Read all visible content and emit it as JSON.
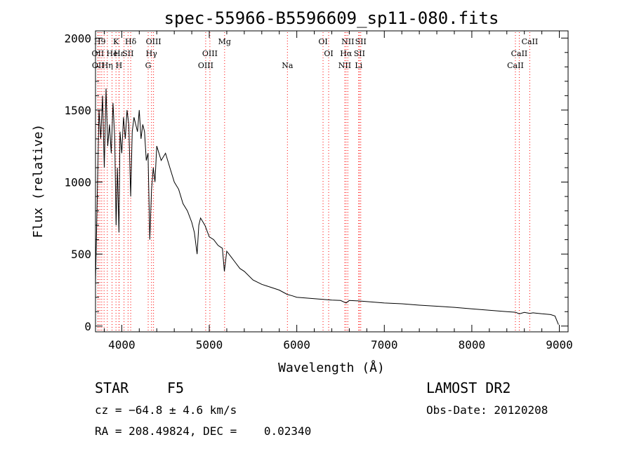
{
  "chart_data": {
    "type": "line",
    "title": "spec-55966-B5596609_sp11-080.fits",
    "xlabel": "Wavelength (Å)",
    "ylabel": "Flux (relative)",
    "xlim": [
      3700,
      9100
    ],
    "ylim": [
      -40,
      2050
    ],
    "x_ticks": [
      4000,
      5000,
      6000,
      7000,
      8000,
      9000
    ],
    "y_ticks": [
      0,
      500,
      1000,
      1500,
      2000
    ],
    "grid": false,
    "series": [
      {
        "x": [
          3700,
          3720,
          3740,
          3760,
          3780,
          3800,
          3820,
          3840,
          3860,
          3880,
          3900,
          3920,
          3935,
          3950,
          3968,
          3980,
          4000,
          4020,
          4040,
          4060,
          4080,
          4102,
          4120,
          4140,
          4160,
          4180,
          4200,
          4220,
          4240,
          4260,
          4280,
          4300,
          4320,
          4340,
          4360,
          4380,
          4400,
          4450,
          4500,
          4550,
          4600,
          4650,
          4700,
          4750,
          4800,
          4830,
          4861,
          4880,
          4900,
          4950,
          5000,
          5050,
          5100,
          5150,
          5172,
          5200,
          5250,
          5300,
          5350,
          5400,
          5500,
          5600,
          5700,
          5800,
          5890,
          5950,
          6000,
          6100,
          6200,
          6300,
          6400,
          6500,
          6563,
          6600,
          6700,
          6800,
          6900,
          7000,
          7200,
          7400,
          7600,
          7800,
          8000,
          8200,
          8400,
          8500,
          8542,
          8600,
          8662,
          8700,
          8800,
          8900,
          8950,
          8990
        ],
        "values": [
          300,
          900,
          1500,
          1300,
          1600,
          1100,
          1650,
          1250,
          1400,
          1200,
          1550,
          1300,
          700,
          1100,
          650,
          1350,
          1200,
          1450,
          1300,
          1500,
          1400,
          900,
          1350,
          1450,
          1400,
          1350,
          1500,
          1300,
          1400,
          1350,
          1150,
          1200,
          600,
          950,
          1100,
          1000,
          1250,
          1150,
          1200,
          1100,
          1000,
          950,
          850,
          800,
          720,
          650,
          500,
          700,
          750,
          700,
          620,
          600,
          560,
          540,
          380,
          520,
          480,
          440,
          400,
          380,
          320,
          290,
          270,
          250,
          220,
          210,
          200,
          195,
          190,
          185,
          180,
          178,
          160,
          178,
          175,
          170,
          165,
          160,
          155,
          145,
          138,
          130,
          120,
          110,
          100,
          96,
          85,
          95,
          88,
          92,
          85,
          80,
          70,
          10
        ]
      }
    ],
    "lines": [
      {
        "x": 3727,
        "label": "OII",
        "row": 2
      },
      {
        "x": 3730,
        "label": "OII",
        "row": 3
      },
      {
        "x": 3750,
        "label": "H9",
        "row": 1
      },
      {
        "x": 3771,
        "label": "",
        "row": 0
      },
      {
        "x": 3798,
        "label": "",
        "row": 0
      },
      {
        "x": 3835,
        "label": "Hη",
        "row": 3
      },
      {
        "x": 3889,
        "label": "He",
        "row": 2
      },
      {
        "x": 3934,
        "label": "K",
        "row": 1
      },
      {
        "x": 3968,
        "label": "H",
        "row": 3
      },
      {
        "x": 3970,
        "label": "Hε",
        "row": 2
      },
      {
        "x": 4026,
        "label": "",
        "row": 0
      },
      {
        "x": 4072,
        "label": "SII",
        "row": 2
      },
      {
        "x": 4102,
        "label": "Hδ",
        "row": 1
      },
      {
        "x": 4302,
        "label": "G",
        "row": 3
      },
      {
        "x": 4340,
        "label": "Hγ",
        "row": 2
      },
      {
        "x": 4363,
        "label": "OIII",
        "row": 1
      },
      {
        "x": 4959,
        "label": "OIII",
        "row": 3
      },
      {
        "x": 5007,
        "label": "OIII",
        "row": 2
      },
      {
        "x": 5175,
        "label": "Mg",
        "row": 1
      },
      {
        "x": 5893,
        "label": "Na",
        "row": 3
      },
      {
        "x": 6300,
        "label": "OI",
        "row": 1
      },
      {
        "x": 6364,
        "label": "OI",
        "row": 2
      },
      {
        "x": 6548,
        "label": "NII",
        "row": 3
      },
      {
        "x": 6563,
        "label": "Hα",
        "row": 2
      },
      {
        "x": 6583,
        "label": "NII",
        "row": 1
      },
      {
        "x": 6707,
        "label": "Li",
        "row": 3
      },
      {
        "x": 6716,
        "label": "SII",
        "row": 2
      },
      {
        "x": 6731,
        "label": "SII",
        "row": 1
      },
      {
        "x": 8498,
        "label": "CaII",
        "row": 3
      },
      {
        "x": 8542,
        "label": "CaII",
        "row": 2
      },
      {
        "x": 8662,
        "label": "CaII",
        "row": 1
      }
    ]
  },
  "info": {
    "class": "STAR",
    "subclass": "F5",
    "survey": "LAMOST DR2",
    "cz": "cz = −64.8 ± 4.6 km/s",
    "obsdate": "Obs-Date: 20120208",
    "radec": "RA = 208.49824, DEC =    0.02340"
  }
}
